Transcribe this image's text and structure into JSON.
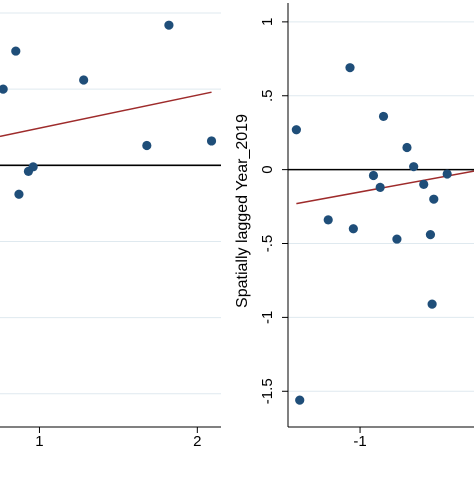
{
  "chart_data": [
    {
      "type": "scatter",
      "panel": "left (cropped)",
      "xlabel": "",
      "ylabel": "",
      "x_ticks": [
        1,
        2
      ],
      "x_tick_labels": [
        "1",
        "2"
      ],
      "xlim": [
        0.75,
        2.15
      ],
      "ylim": [
        -1.6,
        1.0
      ],
      "grid": true,
      "zero_line": 0,
      "points": [
        {
          "x": 0.77,
          "y": 0.5
        },
        {
          "x": 0.85,
          "y": 0.75
        },
        {
          "x": 1.28,
          "y": 0.56
        },
        {
          "x": 1.82,
          "y": 0.92
        },
        {
          "x": 1.68,
          "y": 0.13
        },
        {
          "x": 2.09,
          "y": 0.16
        },
        {
          "x": 0.93,
          "y": -0.04
        },
        {
          "x": 0.96,
          "y": -0.01
        },
        {
          "x": 0.87,
          "y": -0.19
        }
      ],
      "fit_line": {
        "x": [
          0.75,
          2.09
        ],
        "y": [
          0.19,
          0.48
        ]
      }
    },
    {
      "type": "scatter",
      "panel": "right (cropped)",
      "xlabel": "",
      "ylabel": "Spatially lagged Year_2019",
      "x_ticks": [
        -1
      ],
      "x_tick_labels": [
        "-1"
      ],
      "xlim": [
        -1.43,
        -0.32
      ],
      "yticks": [
        1,
        0.5,
        0,
        -0.5,
        -1,
        -1.5
      ],
      "ytick_labels": [
        "1",
        ".5",
        "0",
        "-.5",
        "-1",
        "-1.5"
      ],
      "ylim": [
        -1.62,
        1.06
      ],
      "grid": true,
      "zero_line": 0,
      "points": [
        {
          "x": -1.38,
          "y": 0.27
        },
        {
          "x": -1.36,
          "y": -1.56
        },
        {
          "x": -1.19,
          "y": -0.34
        },
        {
          "x": -1.06,
          "y": 0.69
        },
        {
          "x": -1.04,
          "y": -0.4
        },
        {
          "x": -0.92,
          "y": -0.04
        },
        {
          "x": -0.88,
          "y": -0.12
        },
        {
          "x": -0.86,
          "y": 0.36
        },
        {
          "x": -0.78,
          "y": -0.47
        },
        {
          "x": -0.72,
          "y": 0.15
        },
        {
          "x": -0.68,
          "y": 0.02
        },
        {
          "x": -0.62,
          "y": -0.1
        },
        {
          "x": -0.58,
          "y": -0.44
        },
        {
          "x": -0.57,
          "y": -0.91
        },
        {
          "x": -0.56,
          "y": -0.2
        },
        {
          "x": -0.48,
          "y": -0.03
        }
      ],
      "fit_line": {
        "x": [
          -1.38,
          -0.32
        ],
        "y": [
          -0.23,
          -0.01
        ]
      }
    }
  ],
  "colors": {
    "marker": "#1f4e79",
    "fit_line": "#9e2b2b",
    "zero_line": "#000000",
    "grid": "#dfe9ef",
    "axis": "#000000"
  }
}
